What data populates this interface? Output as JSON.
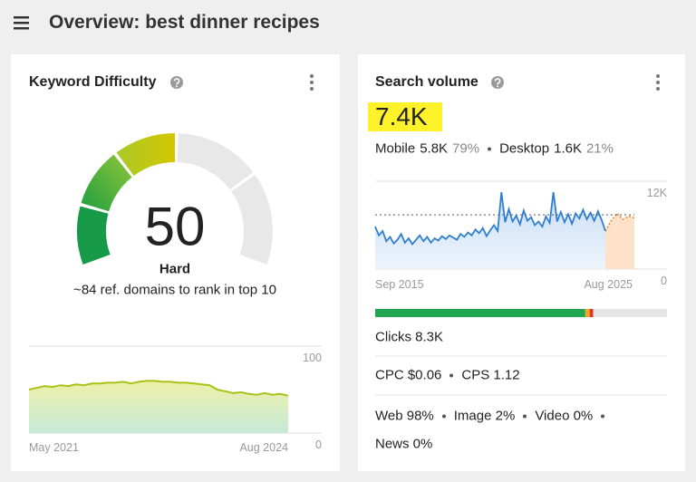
{
  "header": {
    "title": "Overview: best dinner recipes"
  },
  "keyword_difficulty": {
    "title": "Keyword Difficulty",
    "score": 50,
    "level": "Hard",
    "note": "~84 ref. domains to rank in top 10",
    "chart": {
      "type": "area",
      "x_start": "May 2021",
      "x_end": "Aug 2024",
      "values": [
        50,
        52,
        54,
        53,
        55,
        54,
        56,
        55,
        57,
        57,
        58,
        58,
        59,
        57,
        59,
        60,
        60,
        59,
        59,
        58,
        58,
        57,
        56,
        55,
        50,
        48,
        46,
        47,
        45,
        44,
        46,
        44,
        45,
        43
      ],
      "ylim": [
        0,
        100
      ],
      "yticks": [
        0,
        100
      ],
      "color": "#a8c21a"
    }
  },
  "search_volume": {
    "title": "Search volume",
    "volume": {
      "value": 7400,
      "label": "7.4K"
    },
    "mobile": {
      "label": "Mobile",
      "volume": "5.8K",
      "share": "79%"
    },
    "desktop": {
      "label": "Desktop",
      "volume": "1.6K",
      "share": "21%"
    },
    "chart": {
      "type": "area",
      "x_start": "Sep 2015",
      "x_end": "Aug 2025",
      "values": [
        5800,
        4600,
        5200,
        3800,
        4400,
        3500,
        4000,
        4800,
        3600,
        4200,
        3400,
        4000,
        4600,
        3800,
        4400,
        3600,
        4200,
        3900,
        4500,
        4100,
        4600,
        4300,
        4000,
        4800,
        4400,
        5000,
        4600,
        5400,
        4900,
        5600,
        4500,
        5300,
        6000,
        5200,
        10500,
        6400,
        8200,
        6500,
        7300,
        6100,
        8000,
        6600,
        7100,
        6000,
        6500,
        5800,
        7200,
        6300,
        10500,
        6500,
        7800,
        6400,
        7500,
        6200,
        7600,
        6900,
        8100,
        6800,
        7700,
        6600,
        7900,
        6700,
        5200
      ],
      "forecast": [
        5200,
        6600,
        7600,
        6800,
        7200,
        7000
      ],
      "ylim": [
        0,
        12000
      ],
      "yticks": [
        0,
        {
          "value": 12000,
          "label": "12K"
        }
      ],
      "color": "#2f7fd0",
      "forecast_color": "#f08a24"
    },
    "click_bar": [
      {
        "value": 72,
        "color": "#21a64f"
      },
      {
        "value": 1.5,
        "color": "#f5a623"
      },
      {
        "value": 1.2,
        "color": "#e0392b"
      }
    ],
    "clicks": "Clicks 8.3K",
    "cpc": "CPC $0.06",
    "cps": "CPS 1.12",
    "serp": [
      "Web 98%",
      "Image 2%",
      "Video 0%",
      "News 0%"
    ]
  }
}
